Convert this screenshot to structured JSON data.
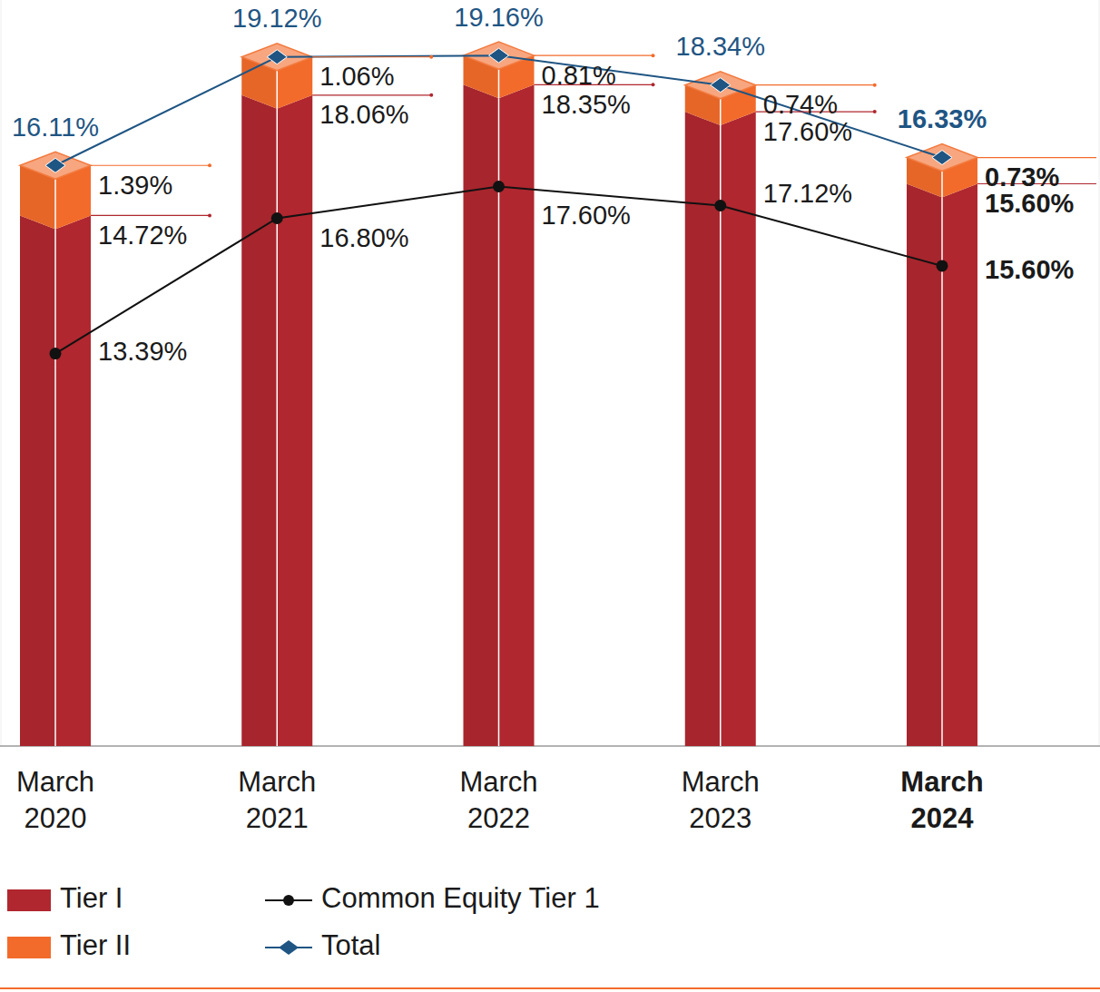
{
  "chart_data": {
    "type": "bar",
    "stacked": true,
    "data_labels": true,
    "tick_labels": "x",
    "legend": "bottom-left",
    "grid": false,
    "categories": [
      "March 2020",
      "March 2021",
      "March 2022",
      "March 2023",
      "March 2024"
    ],
    "ylim": [
      0,
      20.7
    ],
    "yticks": [
      0
    ],
    "y2lim": [
      3.5,
      22.3
    ],
    "y2ticks": [],
    "series": [
      {
        "name": "Tier I",
        "type": "bar",
        "color": "#b0272f",
        "values": [
          14.72,
          18.06,
          18.35,
          17.6,
          15.6
        ],
        "value_labels": [
          "14.72%",
          "18.06%",
          "18.35%",
          "17.60%",
          "15.60%"
        ]
      },
      {
        "name": "Tier II",
        "type": "bar",
        "color": "#f26b2a",
        "values": [
          1.39,
          1.06,
          0.81,
          0.74,
          0.73
        ],
        "value_labels": [
          "1.39%",
          "1.06%",
          "0.81%",
          "0.74%",
          "0.73%"
        ]
      },
      {
        "name": "Common Equity Tier 1",
        "type": "line",
        "color": "#111111",
        "marker": "circle",
        "axis": "y2",
        "values": [
          13.39,
          16.8,
          17.6,
          17.12,
          15.6
        ],
        "value_labels": [
          "13.39%",
          "16.80%",
          "17.60%",
          "17.12%",
          "15.60%"
        ]
      },
      {
        "name": "Total",
        "type": "line",
        "color": "#1f5583",
        "marker": "diamond",
        "values": [
          16.11,
          19.12,
          19.16,
          18.34,
          16.33
        ],
        "value_labels": [
          "16.11%",
          "19.12%",
          "19.16%",
          "18.34%",
          "16.33%"
        ]
      }
    ]
  }
}
